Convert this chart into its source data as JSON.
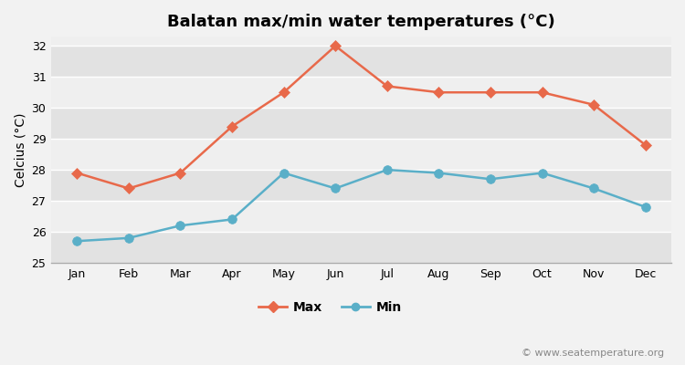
{
  "title": "Balatan max/min water temperatures (°C)",
  "ylabel": "Celcius (°C)",
  "months": [
    "Jan",
    "Feb",
    "Mar",
    "Apr",
    "May",
    "Jun",
    "Jul",
    "Aug",
    "Sep",
    "Oct",
    "Nov",
    "Dec"
  ],
  "max_values": [
    27.9,
    27.4,
    27.9,
    29.4,
    30.5,
    32.0,
    30.7,
    30.5,
    30.5,
    30.5,
    30.1,
    28.8
  ],
  "min_values": [
    25.7,
    25.8,
    26.2,
    26.4,
    27.9,
    27.4,
    28.0,
    27.9,
    27.7,
    27.9,
    27.4,
    26.8
  ],
  "max_color": "#e8694a",
  "min_color": "#5aafc8",
  "bg_color": "#f2f2f2",
  "band_light": "#efefef",
  "band_dark": "#e2e2e2",
  "ylim": [
    25.0,
    32.3
  ],
  "yticks": [
    25,
    26,
    27,
    28,
    29,
    30,
    31,
    32
  ],
  "watermark": "© www.seatemperature.org",
  "legend_max": "Max",
  "legend_min": "Min",
  "title_fontsize": 13,
  "label_fontsize": 10,
  "tick_fontsize": 9,
  "watermark_fontsize": 8
}
